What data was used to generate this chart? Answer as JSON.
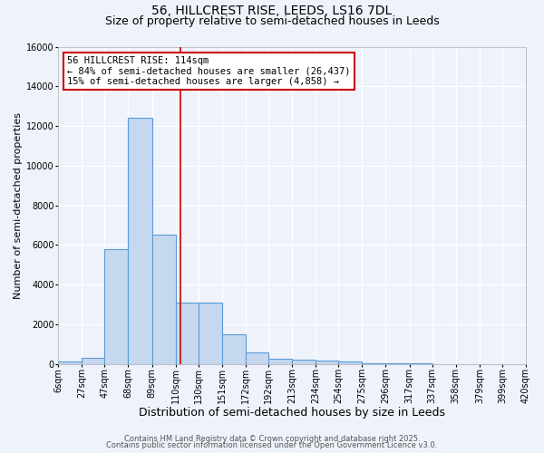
{
  "title_line1": "56, HILLCREST RISE, LEEDS, LS16 7DL",
  "title_line2": "Size of property relative to semi-detached houses in Leeds",
  "xlabel": "Distribution of semi-detached houses by size in Leeds",
  "ylabel": "Number of semi-detached properties",
  "bin_labels": [
    "6sqm",
    "27sqm",
    "47sqm",
    "68sqm",
    "89sqm",
    "110sqm",
    "130sqm",
    "151sqm",
    "172sqm",
    "192sqm",
    "213sqm",
    "234sqm",
    "254sqm",
    "275sqm",
    "296sqm",
    "317sqm",
    "337sqm",
    "358sqm",
    "379sqm",
    "399sqm",
    "420sqm"
  ],
  "bin_edges": [
    6,
    27,
    47,
    68,
    89,
    110,
    130,
    151,
    172,
    192,
    213,
    234,
    254,
    275,
    296,
    317,
    337,
    358,
    379,
    399,
    420
  ],
  "bar_heights": [
    100,
    300,
    5800,
    12400,
    6500,
    3100,
    3100,
    1500,
    600,
    250,
    200,
    150,
    100,
    50,
    30,
    10,
    5,
    5,
    3,
    2
  ],
  "bar_color": "#c5d8f0",
  "bar_edge_color": "#5b9bd5",
  "bar_edge_width": 0.8,
  "red_line_x": 114,
  "red_line_color": "#cc0000",
  "annotation_line1": "56 HILLCREST RISE: 114sqm",
  "annotation_line2": "← 84% of semi-detached houses are smaller (26,437)",
  "annotation_line3": "15% of semi-detached houses are larger (4,858) →",
  "ylim": [
    0,
    16000
  ],
  "yticks": [
    0,
    2000,
    4000,
    6000,
    8000,
    10000,
    12000,
    14000,
    16000
  ],
  "background_color": "#eef2fa",
  "grid_color": "#ffffff",
  "footer_line1": "Contains HM Land Registry data © Crown copyright and database right 2025.",
  "footer_line2": "Contains public sector information licensed under the Open Government Licence v3.0.",
  "title_fontsize": 10,
  "subtitle_fontsize": 9,
  "xlabel_fontsize": 9,
  "ylabel_fontsize": 8,
  "tick_fontsize": 7,
  "annot_fontsize": 7.5,
  "footer_fontsize": 6
}
